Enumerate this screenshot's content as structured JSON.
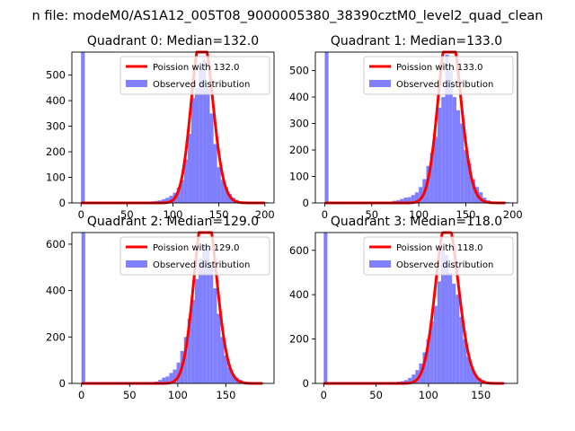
{
  "figure": {
    "suptitle": "n file: modeM0/AS1A12_005T08_9000005380_38390cztM0_level2_quad_clean"
  },
  "colors": {
    "poisson": "#ff0000",
    "observed": "#8080ff",
    "axes": "#000000",
    "legend_border": "#cccccc"
  },
  "chart_data": [
    {
      "type": "bar",
      "title": "Quadrant 0: Median=132.0",
      "xlim": [
        -10,
        210
      ],
      "ylim": [
        0,
        590
      ],
      "xticks": [
        0,
        50,
        100,
        150,
        200
      ],
      "yticks": [
        0,
        100,
        200,
        300,
        400,
        500
      ],
      "legend": {
        "placement": "upper right",
        "entries": [
          "Poission with 132.0",
          "Observed distribution"
        ]
      },
      "bin_width": 4.1,
      "bins": [
        [
          0,
          590
        ],
        [
          4,
          3
        ],
        [
          8,
          2
        ],
        [
          12,
          2
        ],
        [
          16,
          2
        ],
        [
          20,
          2
        ],
        [
          24,
          2
        ],
        [
          28,
          2
        ],
        [
          32,
          2
        ],
        [
          36,
          2
        ],
        [
          40,
          2
        ],
        [
          44,
          2
        ],
        [
          48,
          2
        ],
        [
          52,
          2
        ],
        [
          56,
          2
        ],
        [
          60,
          2
        ],
        [
          64,
          3
        ],
        [
          68,
          4
        ],
        [
          72,
          5
        ],
        [
          76,
          6
        ],
        [
          80,
          8
        ],
        [
          84,
          10
        ],
        [
          88,
          15
        ],
        [
          92,
          20
        ],
        [
          96,
          28
        ],
        [
          100,
          40
        ],
        [
          104,
          60
        ],
        [
          108,
          90
        ],
        [
          112,
          170
        ],
        [
          116,
          270
        ],
        [
          120,
          410
        ],
        [
          124,
          450
        ],
        [
          128,
          530
        ],
        [
          132,
          560
        ],
        [
          136,
          450
        ],
        [
          140,
          350
        ],
        [
          144,
          230
        ],
        [
          148,
          140
        ],
        [
          152,
          90
        ],
        [
          156,
          60
        ],
        [
          160,
          35
        ],
        [
          164,
          20
        ],
        [
          168,
          10
        ],
        [
          172,
          6
        ],
        [
          176,
          4
        ],
        [
          180,
          3
        ],
        [
          184,
          2
        ],
        [
          188,
          2
        ],
        [
          192,
          2
        ],
        [
          196,
          2
        ],
        [
          200,
          3
        ]
      ],
      "poisson": {
        "lambda": 132.0,
        "x": [
          0,
          200
        ]
      }
    },
    {
      "type": "bar",
      "title": "Quadrant 1: Median=133.0",
      "xlim": [
        -10,
        205
      ],
      "ylim": [
        0,
        570
      ],
      "xticks": [
        0,
        50,
        100,
        150,
        200
      ],
      "yticks": [
        0,
        100,
        200,
        300,
        400,
        500
      ],
      "legend": {
        "placement": "upper right",
        "entries": [
          "Poission with 133.0",
          "Observed distribution"
        ]
      },
      "bin_width": 4.0,
      "bins": [
        [
          0,
          570
        ],
        [
          4,
          3
        ],
        [
          8,
          2
        ],
        [
          12,
          2
        ],
        [
          16,
          2
        ],
        [
          20,
          2
        ],
        [
          24,
          2
        ],
        [
          28,
          2
        ],
        [
          32,
          2
        ],
        [
          36,
          2
        ],
        [
          40,
          2
        ],
        [
          44,
          2
        ],
        [
          48,
          2
        ],
        [
          52,
          2
        ],
        [
          56,
          2
        ],
        [
          60,
          2
        ],
        [
          64,
          3
        ],
        [
          68,
          5
        ],
        [
          72,
          8
        ],
        [
          76,
          10
        ],
        [
          80,
          15
        ],
        [
          84,
          20
        ],
        [
          88,
          22
        ],
        [
          92,
          30
        ],
        [
          96,
          40
        ],
        [
          100,
          60
        ],
        [
          104,
          90
        ],
        [
          108,
          140
        ],
        [
          112,
          190
        ],
        [
          116,
          250
        ],
        [
          120,
          360
        ],
        [
          124,
          400
        ],
        [
          128,
          560
        ],
        [
          132,
          500
        ],
        [
          136,
          400
        ],
        [
          140,
          350
        ],
        [
          144,
          300
        ],
        [
          148,
          200
        ],
        [
          152,
          150
        ],
        [
          156,
          90
        ],
        [
          160,
          60
        ],
        [
          164,
          40
        ],
        [
          168,
          20
        ],
        [
          172,
          10
        ],
        [
          176,
          5
        ],
        [
          180,
          3
        ],
        [
          184,
          2
        ],
        [
          188,
          2
        ],
        [
          192,
          3
        ]
      ],
      "poisson": {
        "lambda": 133.0,
        "x": [
          0,
          192
        ]
      }
    },
    {
      "type": "bar",
      "title": "Quadrant 2: Median=129.0",
      "xlim": [
        -10,
        200
      ],
      "ylim": [
        0,
        650
      ],
      "xticks": [
        0,
        50,
        100,
        150
      ],
      "yticks": [
        0,
        200,
        400,
        600
      ],
      "legend": {
        "placement": "upper right",
        "entries": [
          "Poission with 129.0",
          "Observed distribution"
        ]
      },
      "bin_width": 3.8,
      "bins": [
        [
          0,
          650
        ],
        [
          3.8,
          3
        ],
        [
          7.6,
          2
        ],
        [
          11.4,
          2
        ],
        [
          15.2,
          2
        ],
        [
          19,
          2
        ],
        [
          22.8,
          2
        ],
        [
          26.6,
          2
        ],
        [
          30.4,
          2
        ],
        [
          34.2,
          2
        ],
        [
          38,
          2
        ],
        [
          41.8,
          2
        ],
        [
          45.6,
          2
        ],
        [
          49.4,
          2
        ],
        [
          53.2,
          2
        ],
        [
          57,
          2
        ],
        [
          60.8,
          3
        ],
        [
          64.6,
          4
        ],
        [
          68.4,
          5
        ],
        [
          72.2,
          6
        ],
        [
          76,
          8
        ],
        [
          79.8,
          15
        ],
        [
          83.6,
          25
        ],
        [
          87.4,
          30
        ],
        [
          91.2,
          45
        ],
        [
          95,
          60
        ],
        [
          98.8,
          90
        ],
        [
          102.6,
          140
        ],
        [
          106.4,
          200
        ],
        [
          110.2,
          280
        ],
        [
          114,
          360
        ],
        [
          117.8,
          450
        ],
        [
          121.6,
          540
        ],
        [
          125.4,
          600
        ],
        [
          129.2,
          580
        ],
        [
          133,
          500
        ],
        [
          136.8,
          410
        ],
        [
          140.6,
          300
        ],
        [
          144.4,
          200
        ],
        [
          148.2,
          120
        ],
        [
          152,
          70
        ],
        [
          155.8,
          40
        ],
        [
          159.6,
          25
        ],
        [
          163.4,
          15
        ],
        [
          167.2,
          8
        ],
        [
          171,
          5
        ],
        [
          174.8,
          3
        ],
        [
          178.6,
          2
        ],
        [
          182.4,
          2
        ],
        [
          186.2,
          3
        ]
      ],
      "poisson": {
        "lambda": 129.0,
        "x": [
          0,
          188
        ]
      }
    },
    {
      "type": "bar",
      "title": "Quadrant 3: Median=118.0",
      "xlim": [
        -8,
        185
      ],
      "ylim": [
        0,
        680
      ],
      "xticks": [
        0,
        50,
        100,
        150
      ],
      "yticks": [
        0,
        200,
        400,
        600
      ],
      "legend": {
        "placement": "upper right",
        "entries": [
          "Poission with 118.0",
          "Observed distribution"
        ]
      },
      "bin_width": 3.5,
      "bins": [
        [
          0,
          680
        ],
        [
          3.5,
          3
        ],
        [
          7,
          2
        ],
        [
          10.5,
          2
        ],
        [
          14,
          2
        ],
        [
          17.5,
          2
        ],
        [
          21,
          2
        ],
        [
          24.5,
          2
        ],
        [
          28,
          2
        ],
        [
          31.5,
          2
        ],
        [
          35,
          2
        ],
        [
          38.5,
          2
        ],
        [
          42,
          2
        ],
        [
          45.5,
          2
        ],
        [
          49,
          2
        ],
        [
          52.5,
          2
        ],
        [
          56,
          3
        ],
        [
          59.5,
          4
        ],
        [
          63,
          5
        ],
        [
          66.5,
          6
        ],
        [
          70,
          8
        ],
        [
          73.5,
          10
        ],
        [
          77,
          15
        ],
        [
          80.5,
          25
        ],
        [
          84,
          40
        ],
        [
          87.5,
          60
        ],
        [
          91,
          90
        ],
        [
          94.5,
          140
        ],
        [
          98,
          200
        ],
        [
          101.5,
          280
        ],
        [
          105,
          350
        ],
        [
          108.5,
          460
        ],
        [
          112,
          600
        ],
        [
          115.5,
          580
        ],
        [
          119,
          500
        ],
        [
          122.5,
          450
        ],
        [
          126,
          400
        ],
        [
          129.5,
          300
        ],
        [
          133,
          200
        ],
        [
          136.5,
          120
        ],
        [
          140,
          70
        ],
        [
          143.5,
          40
        ],
        [
          147,
          25
        ],
        [
          150.5,
          15
        ],
        [
          154,
          8
        ],
        [
          157.5,
          5
        ],
        [
          161,
          3
        ],
        [
          164.5,
          2
        ],
        [
          168,
          2
        ],
        [
          171.5,
          3
        ]
      ],
      "poisson": {
        "lambda": 118.0,
        "x": [
          0,
          172
        ]
      }
    }
  ]
}
